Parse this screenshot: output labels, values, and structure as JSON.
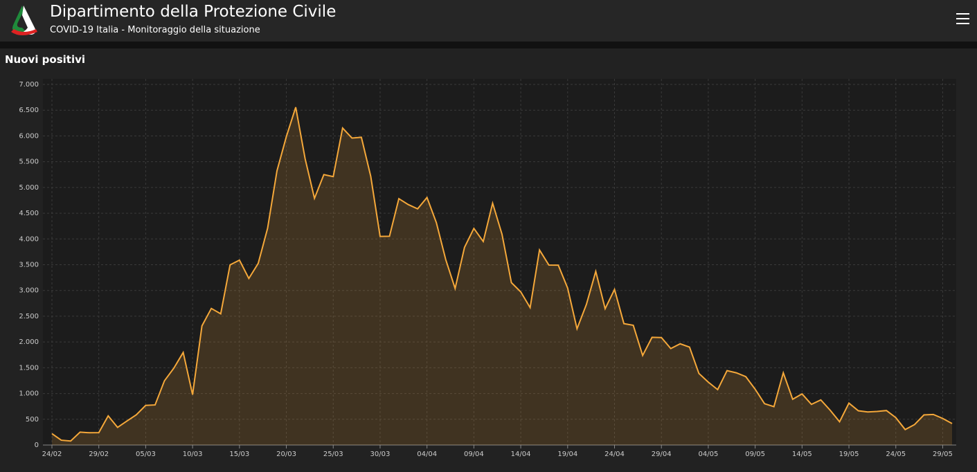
{
  "header": {
    "title": "Dipartimento della Protezione Civile",
    "subtitle": "COVID-19 Italia - Monitoraggio della situazione"
  },
  "chart_data": {
    "type": "area",
    "title": "Nuovi positivi",
    "color": "#f5a83a",
    "grid": true,
    "categories": [
      "24/02",
      null,
      null,
      null,
      null,
      "29/02",
      null,
      null,
      null,
      null,
      "05/03",
      null,
      null,
      null,
      null,
      "10/03",
      null,
      null,
      null,
      null,
      "15/03",
      null,
      null,
      null,
      null,
      "20/03",
      null,
      null,
      null,
      null,
      "25/03",
      null,
      null,
      null,
      null,
      "30/03",
      null,
      null,
      null,
      null,
      "04/04",
      null,
      null,
      null,
      null,
      "09/04",
      null,
      null,
      null,
      null,
      "14/04",
      null,
      null,
      null,
      null,
      "19/04",
      null,
      null,
      null,
      null,
      "24/04",
      null,
      null,
      null,
      null,
      "29/04",
      null,
      null,
      null,
      null,
      "04/05",
      null,
      null,
      null,
      null,
      "09/05",
      null,
      null,
      null,
      null,
      "14/05",
      null,
      null,
      null,
      null,
      "19/05",
      null,
      null,
      null,
      null,
      "24/05",
      null,
      null,
      null,
      null,
      "29/05",
      null
    ],
    "values": [
      221,
      93,
      78,
      250,
      238,
      240,
      566,
      342,
      466,
      587,
      769,
      778,
      1247,
      1492,
      1797,
      977,
      2313,
      2651,
      2547,
      3497,
      3590,
      3233,
      3526,
      4207,
      5322,
      5986,
      6557,
      5560,
      4789,
      5249,
      5210,
      6153,
      5959,
      5974,
      5217,
      4050,
      4053,
      4782,
      4668,
      4585,
      4805,
      4316,
      3599,
      3039,
      3836,
      4204,
      3951,
      4694,
      4092,
      3153,
      2972,
      2667,
      3786,
      3493,
      3491,
      3047,
      2256,
      2729,
      3370,
      2646,
      3021,
      2357,
      2324,
      1739,
      2091,
      2086,
      1872,
      1965,
      1900,
      1389,
      1221,
      1075,
      1444,
      1401,
      1327,
      1083,
      802,
      744,
      1402,
      888,
      992,
      789,
      875,
      675,
      451,
      813,
      665,
      642,
      652,
      669,
      531,
      300,
      397,
      584,
      593,
      516,
      416
    ],
    "ylim": [
      0,
      7000
    ],
    "yticks": [
      0,
      500,
      {
        "value": 1000,
        "label": "1.000"
      },
      {
        "value": 1500,
        "label": "1.500"
      },
      {
        "value": 2000,
        "label": "2.000"
      },
      {
        "value": 2500,
        "label": "2.500"
      },
      {
        "value": 3000,
        "label": "3.000"
      },
      {
        "value": 3500,
        "label": "3.500"
      },
      {
        "value": 4000,
        "label": "4.000"
      },
      {
        "value": 4500,
        "label": "4.500"
      },
      {
        "value": 5000,
        "label": "5.000"
      },
      {
        "value": 5500,
        "label": "5.500"
      },
      {
        "value": 6000,
        "label": "6.000"
      },
      {
        "value": 6500,
        "label": "6.500"
      },
      {
        "value": 7000,
        "label": "7.000"
      }
    ]
  }
}
